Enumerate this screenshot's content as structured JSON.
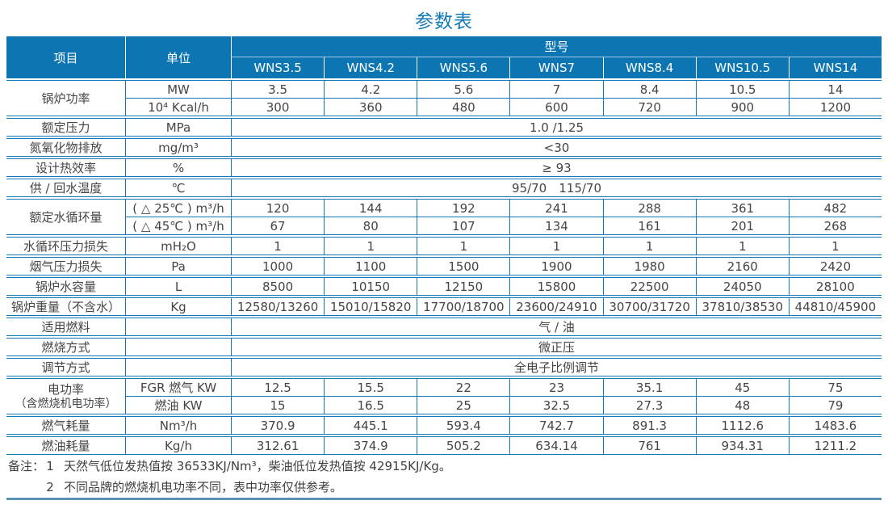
{
  "title": "参数表",
  "colors": {
    "header_bg": "#0d76b2",
    "border_blue": "#1377b3",
    "title_blue": "#1479b6",
    "body_text": "#454545",
    "bottom_rule": "#5b93b8"
  },
  "table": {
    "header": {
      "item": "项目",
      "unit": "单位",
      "model_group": "型号",
      "models": [
        "WNS3.5",
        "WNS4.2",
        "WNS5.6",
        "WNS7",
        "WNS8.4",
        "WNS10.5",
        "WNS14"
      ]
    },
    "groups": [
      {
        "item": "锅炉功率",
        "rows": [
          {
            "unit": "MW",
            "values": [
              "3.5",
              "4.2",
              "5.6",
              "7",
              "8.4",
              "10.5",
              "14"
            ]
          },
          {
            "unit": "10⁴ Kcal/h",
            "values": [
              "300",
              "360",
              "480",
              "600",
              "720",
              "900",
              "1200"
            ]
          }
        ]
      },
      {
        "item": "额定压力",
        "rows": [
          {
            "unit": "MPa",
            "span": "1.0 /1.25"
          }
        ]
      },
      {
        "item": "氮氧化物排放",
        "rows": [
          {
            "unit": "mg/m³",
            "span": "<30"
          }
        ]
      },
      {
        "item": "设计热效率",
        "rows": [
          {
            "unit": "%",
            "span": "≥ 93"
          }
        ]
      },
      {
        "item": "供 / 回水温度",
        "rows": [
          {
            "unit": "℃",
            "span": "95/70　115/70"
          }
        ]
      },
      {
        "item": "额定水循环量",
        "rows": [
          {
            "unit": "( △ 25℃ ) m³/h",
            "values": [
              "120",
              "144",
              "192",
              "241",
              "288",
              "361",
              "482"
            ]
          },
          {
            "unit": "( △ 45℃ ) m³/h",
            "values": [
              "67",
              "80",
              "107",
              "134",
              "161",
              "201",
              "268"
            ]
          }
        ]
      },
      {
        "item": "水循环压力损失",
        "rows": [
          {
            "unit": "mH₂O",
            "values": [
              "1",
              "1",
              "1",
              "1",
              "1",
              "1",
              "1"
            ]
          }
        ]
      },
      {
        "item": "烟气压力损失",
        "rows": [
          {
            "unit": "Pa",
            "values": [
              "1000",
              "1100",
              "1500",
              "1900",
              "1980",
              "2160",
              "2420"
            ]
          }
        ]
      },
      {
        "item": "锅炉水容量",
        "rows": [
          {
            "unit": "L",
            "values": [
              "8500",
              "10150",
              "12150",
              "15800",
              "22500",
              "24050",
              "28100"
            ]
          }
        ]
      },
      {
        "item": "锅炉重量（不含水）",
        "rows": [
          {
            "unit": "Kg",
            "values": [
              "12580/13260",
              "15010/15820",
              "17700/18700",
              "23600/24910",
              "30700/31720",
              "37810/38530",
              "44810/45900"
            ]
          }
        ]
      },
      {
        "item": "适用燃料",
        "rows": [
          {
            "unit": "",
            "span": "气 / 油"
          }
        ]
      },
      {
        "item": "燃烧方式",
        "rows": [
          {
            "unit": "",
            "span": "微正压"
          }
        ]
      },
      {
        "item": "调节方式",
        "rows": [
          {
            "unit": "",
            "span": "全电子比例调节"
          }
        ]
      },
      {
        "item": "电功率",
        "item_sub": "（含燃烧机电功率）",
        "rows": [
          {
            "unit": "FGR 燃气 KW",
            "values": [
              "12.5",
              "15.5",
              "22",
              "23",
              "35.1",
              "45",
              "75"
            ]
          },
          {
            "unit": "燃油 KW",
            "values": [
              "15",
              "16.5",
              "25",
              "32.5",
              "27.3",
              "48",
              "79"
            ]
          }
        ]
      },
      {
        "item": "燃气耗量",
        "rows": [
          {
            "unit": "Nm³/h",
            "values": [
              "370.9",
              "445.1",
              "593.4",
              "742.7",
              "891.3",
              "1112.6",
              "1483.6"
            ]
          }
        ]
      },
      {
        "item": "燃油耗量",
        "rows": [
          {
            "unit": "Kg/h",
            "values": [
              "312.61",
              "374.9",
              "505.2",
              "634.14",
              "761",
              "934.31",
              "1211.2"
            ]
          }
        ]
      }
    ]
  },
  "notes": {
    "label": "备注：",
    "items": [
      {
        "num": "1",
        "text": "天然气低位发热值按 36533KJ/Nm³，柴油低位发热值按 42915KJ/Kg。"
      },
      {
        "num": "2",
        "text": "不同品牌的燃烧机电功率不同，表中功率仅供参考。"
      }
    ]
  }
}
